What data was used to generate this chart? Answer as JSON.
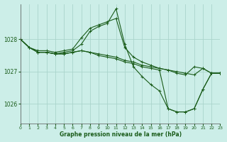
{
  "title": "Graphe pression niveau de la mer (hPa)",
  "background_color": "#cceee8",
  "grid_color": "#aad4cc",
  "line_color": "#1a5c1a",
  "x_min": 0,
  "x_max": 23,
  "y_min": 1025.4,
  "y_max": 1029.1,
  "yticks": [
    1026,
    1027,
    1028
  ],
  "xticks": [
    0,
    1,
    2,
    3,
    4,
    5,
    6,
    7,
    8,
    9,
    10,
    11,
    12,
    13,
    14,
    15,
    16,
    17,
    18,
    19,
    20,
    21,
    22,
    23
  ],
  "series": [
    [
      1028.0,
      1027.75,
      1027.65,
      1027.65,
      1027.6,
      1027.65,
      1027.7,
      1028.05,
      1028.35,
      1028.45,
      1028.55,
      1028.65,
      1027.75,
      1027.45,
      1027.3,
      1027.2,
      1027.1,
      1027.05,
      1026.95,
      1026.9,
      1027.15,
      1027.1,
      1026.95,
      1026.95
    ],
    [
      1028.0,
      1027.75,
      1027.6,
      1027.6,
      1027.55,
      1027.6,
      1027.65,
      1027.85,
      1028.25,
      1028.4,
      1028.5,
      1028.95,
      1027.85,
      1027.15,
      1026.85,
      1026.6,
      1026.4,
      1025.85,
      1025.75,
      1025.75,
      1025.85,
      1026.45,
      1026.95,
      1026.95
    ],
    [
      1028.0,
      1027.75,
      1027.6,
      1027.6,
      1027.55,
      1027.55,
      1027.6,
      1027.65,
      1027.6,
      1027.55,
      1027.5,
      1027.45,
      1027.35,
      1027.3,
      1027.2,
      1027.15,
      1027.1,
      1027.05,
      1027.0,
      1026.95,
      1026.9,
      1027.1,
      1026.95,
      1026.95
    ],
    [
      1028.0,
      1027.75,
      1027.6,
      1027.6,
      1027.55,
      1027.55,
      1027.6,
      1027.65,
      1027.6,
      1027.5,
      1027.45,
      1027.4,
      1027.3,
      1027.25,
      1027.15,
      1027.1,
      1027.05,
      1025.85,
      1025.75,
      1025.75,
      1025.85,
      1026.45,
      1026.95,
      1026.95
    ]
  ]
}
